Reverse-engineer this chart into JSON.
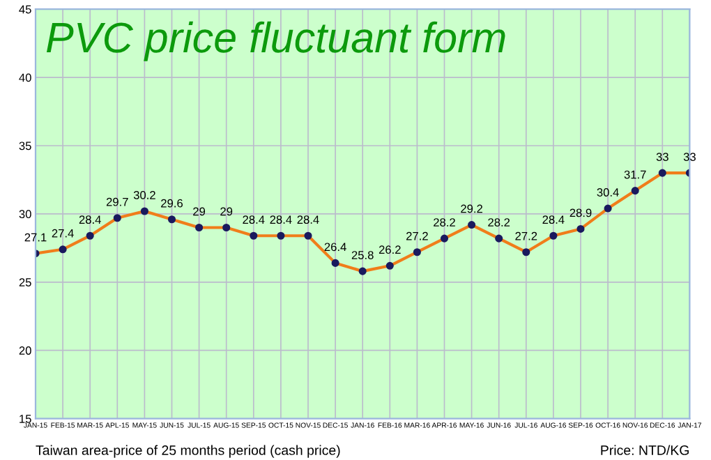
{
  "chart_data": {
    "type": "line",
    "title": "PVC price fluctuant form",
    "categories": [
      "JAN-15",
      "FEB-15",
      "MAR-15",
      "APL-15",
      "MAY-15",
      "JUN-15",
      "JUL-15",
      "AUG-15",
      "SEP-15",
      "OCT-15",
      "NOV-15",
      "DEC-15",
      "JAN-16",
      "FEB-16",
      "MAR-16",
      "APR-16",
      "MAY-16",
      "JUN-16",
      "JUL-16",
      "AUG-16",
      "SEP-16",
      "OCT-16",
      "NOV-16",
      "DEC-16",
      "JAN-17"
    ],
    "series": [
      {
        "color": "#f07d1a",
        "values": [
          27.1,
          27.4,
          28.4,
          29.7,
          30.2,
          29.6,
          29,
          29,
          28.4,
          28.4,
          28.4,
          26.4,
          25.8,
          26.2,
          27.2,
          28.2,
          29.2,
          28.2,
          27.2,
          28.4,
          28.9,
          30.4,
          31.7,
          33,
          33
        ]
      }
    ],
    "ylim": [
      15,
      45
    ],
    "yticks": [
      15,
      20,
      25,
      30,
      35,
      40,
      45
    ],
    "grid": true,
    "marker": "circle",
    "line_style": "solid",
    "data_labels": true,
    "legend": false,
    "annotations": [
      "Taiwan area-price of 25 months period (cash price)",
      "Price: NTD/KG"
    ]
  }
}
